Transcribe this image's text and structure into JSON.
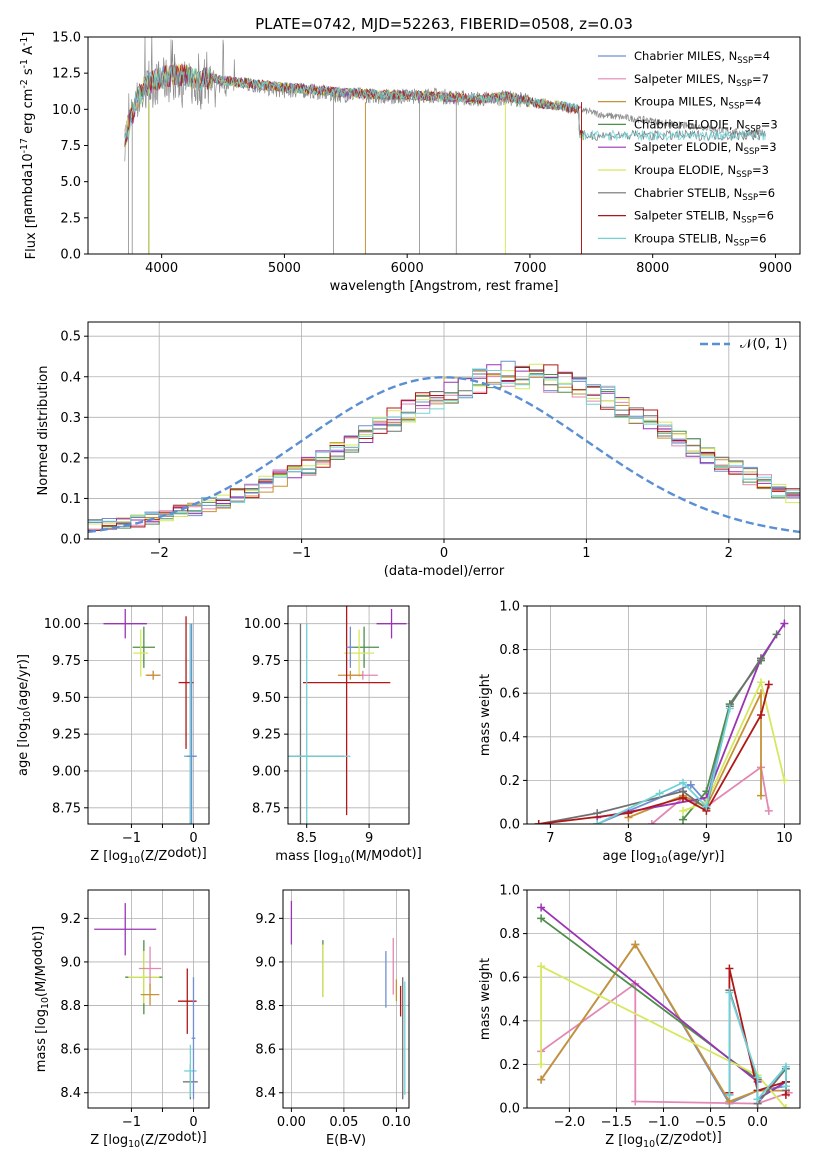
{
  "colors": {
    "Chabrier MILES": "#6f8fd1",
    "Salpeter MILES": "#e387b4",
    "Kroupa MILES": "#c79236",
    "Chabrier ELODIE": "#4e8e4a",
    "Salpeter ELODIE": "#9a34b5",
    "Kroupa ELODIE": "#d6e85f",
    "Chabrier STELIB": "#707070",
    "Salpeter STELIB": "#b01818",
    "Kroupa STELIB": "#70d2d6",
    "gauss": "#5b8fd4"
  },
  "chart_data": [
    {
      "id": "spectrum",
      "type": "line",
      "title": "PLATE=0742, MJD=52263, FIBERID=0508, z=0.03",
      "xlabel": "wavelength [Angstrom, rest frame]",
      "ylabel": "Flux [f$_\\lambda$10$^{-17}$ erg cm$^{-2}$ s$^{-1}$ A$^{-1}$]",
      "xlim": [
        3400,
        9200
      ],
      "ylim": [
        0,
        15
      ],
      "xticks": [
        4000,
        5000,
        6000,
        7000,
        8000,
        9000
      ],
      "yticks": [
        0.0,
        2.5,
        5.0,
        7.5,
        10.0,
        12.5,
        15.0
      ],
      "grid": false,
      "legend": "top-right",
      "legend_entries": [
        {
          "model": "Chabrier MILES",
          "n": "4"
        },
        {
          "model": "Salpeter MILES",
          "n": "7"
        },
        {
          "model": "Kroupa MILES",
          "n": "4"
        },
        {
          "model": "Chabrier ELODIE",
          "n": "3"
        },
        {
          "model": "Salpeter ELODIE",
          "n": "3"
        },
        {
          "model": "Kroupa ELODIE",
          "n": "3"
        },
        {
          "model": "Chabrier STELIB",
          "n": "6"
        },
        {
          "model": "Salpeter STELIB",
          "n": "6"
        },
        {
          "model": "Kroupa STELIB",
          "n": "6"
        }
      ],
      "series": [
        {
          "name": "data",
          "x": [
            3700,
            3800,
            3900,
            4000,
            4100,
            4200,
            4300,
            4400,
            4500,
            4600,
            4700,
            4800,
            4900,
            5000,
            5200,
            5400,
            5600,
            5800,
            6000,
            6200,
            6400,
            6600,
            6800,
            7000,
            7200,
            7400,
            7600,
            7800,
            8000,
            8200,
            8400,
            8600,
            8800,
            8900
          ],
          "y": [
            8.0,
            10.5,
            11.5,
            12.0,
            12.0,
            11.8,
            11.5,
            11.7,
            11.6,
            11.8,
            11.7,
            11.6,
            11.4,
            11.3,
            11.3,
            11.0,
            11.0,
            10.9,
            10.9,
            11.0,
            10.8,
            10.7,
            10.8,
            10.6,
            10.2,
            10.0,
            9.6,
            9.4,
            9.2,
            8.9,
            8.8,
            8.5,
            8.3,
            8.4
          ]
        },
        {
          "name": "model",
          "x": [
            3700,
            3800,
            3900,
            4000,
            4100,
            4200,
            4300,
            4400,
            4500,
            4600,
            4700,
            4800,
            4900,
            5000,
            5200,
            5400,
            5600,
            5800,
            6000,
            6200,
            6400,
            6600,
            6800,
            7000,
            7200,
            7400
          ],
          "y": [
            8.0,
            10.8,
            11.8,
            12.2,
            12.4,
            12.3,
            12.0,
            12.2,
            12.0,
            11.9,
            11.8,
            11.7,
            11.6,
            11.5,
            11.4,
            11.2,
            11.1,
            11.0,
            11.0,
            10.9,
            10.8,
            10.7,
            10.9,
            10.5,
            10.3,
            10.0
          ]
        }
      ]
    },
    {
      "id": "residuals",
      "type": "histogram",
      "xlabel": "(data-model)/error",
      "ylabel": "Normed distribution",
      "xlim": [
        -2.5,
        2.5
      ],
      "ylim": [
        0,
        0.535
      ],
      "xticks": [
        -2,
        -1,
        0,
        1,
        2
      ],
      "yticks": [
        0.0,
        0.1,
        0.2,
        0.3,
        0.4,
        0.5
      ],
      "grid": true,
      "legend": "top-right",
      "legend_label": "$\\mathcal{N}(0, 1)$",
      "bin_edges_start": -2.5,
      "bin_width": 0.1,
      "mean_bins": [
        0.035,
        0.035,
        0.04,
        0.045,
        0.05,
        0.06,
        0.068,
        0.075,
        0.085,
        0.095,
        0.108,
        0.12,
        0.135,
        0.15,
        0.165,
        0.18,
        0.2,
        0.215,
        0.235,
        0.255,
        0.275,
        0.295,
        0.315,
        0.335,
        0.352,
        0.365,
        0.378,
        0.39,
        0.398,
        0.405,
        0.405,
        0.402,
        0.395,
        0.385,
        0.372,
        0.36,
        0.345,
        0.328,
        0.31,
        0.29,
        0.27,
        0.25,
        0.23,
        0.21,
        0.19,
        0.172,
        0.155,
        0.138,
        0.122,
        0.108,
        0.095,
        0.084,
        0.073,
        0.064,
        0.055,
        0.048,
        0.042,
        0.036,
        0.031,
        0.026
      ],
      "gauss_x": [
        -2.5,
        -2.0,
        -1.5,
        -1.0,
        -0.5,
        0.0,
        0.5,
        1.0,
        1.5,
        2.0,
        2.5
      ],
      "gauss_y": [
        0.0175,
        0.054,
        0.1295,
        0.242,
        0.352,
        0.399,
        0.352,
        0.242,
        0.1295,
        0.054,
        0.0175
      ]
    },
    {
      "id": "age_vs_Z",
      "type": "errorbar",
      "xlabel": "Z [log$_{10}$($Z/Z_\\odot$)]",
      "ylabel": "age  [log$_{10}$($age/yr$)]",
      "xlim": [
        -1.7,
        0.25
      ],
      "ylim": [
        8.64,
        10.12
      ],
      "xticks": [
        -1,
        -0.5,
        0
      ],
      "xticklabels": [
        "−1",
        "",
        "0"
      ],
      "yticks": [
        8.75,
        9.0,
        9.25,
        9.5,
        9.75,
        10.0
      ],
      "grid": true,
      "points": [
        {
          "series": "Salpeter ELODIE",
          "x": -1.1,
          "y": 10.0,
          "xerr": 0.35,
          "yerr": 0.1
        },
        {
          "series": "Chabrier ELODIE",
          "x": -0.8,
          "y": 9.84,
          "xerr": 0.18,
          "yerr": 0.14
        },
        {
          "series": "Kroupa ELODIE",
          "x": -0.85,
          "y": 9.8,
          "xerr": 0.12,
          "yerr": 0.16
        },
        {
          "series": "Salpeter MILES",
          "x": -0.65,
          "y": 9.65,
          "xerr": 0.1,
          "yerr": 0.03
        },
        {
          "series": "Kroupa MILES",
          "x": -0.65,
          "y": 9.65,
          "xerr": 0.12,
          "yerr": 0.03
        },
        {
          "series": "Salpeter STELIB",
          "x": -0.12,
          "y": 9.6,
          "xerr": 0.12,
          "yerr": 0.45
        },
        {
          "series": "Chabrier STELIB",
          "x": -0.05,
          "y": 9.1,
          "xerr": 0.1,
          "yerr": 0.9
        },
        {
          "series": "Kroupa STELIB",
          "x": -0.05,
          "y": 9.1,
          "xerr": 0.1,
          "yerr": 0.9
        },
        {
          "series": "Chabrier MILES",
          "x": -0.03,
          "y": 9.1,
          "xerr": 0.08,
          "yerr": 0.9
        }
      ]
    },
    {
      "id": "age_vs_mass",
      "type": "errorbar",
      "xlabel": "mass [log$_{10}$($M/M_\\odot$)]",
      "ylabel": "",
      "xlim": [
        8.35,
        9.32
      ],
      "ylim": [
        8.64,
        10.12
      ],
      "xticks": [
        8.5,
        9.0
      ],
      "yticks": [
        8.75,
        9.0,
        9.25,
        9.5,
        9.75,
        10.0
      ],
      "grid": true,
      "points": [
        {
          "series": "Salpeter ELODIE",
          "x": 9.18,
          "y": 10.0,
          "xerr": 0.12,
          "yerr": 0.1
        },
        {
          "series": "Chabrier ELODIE",
          "x": 8.96,
          "y": 9.84,
          "xerr": 0.12,
          "yerr": 0.14
        },
        {
          "series": "Kroupa ELODIE",
          "x": 8.92,
          "y": 9.8,
          "xerr": 0.12,
          "yerr": 0.16
        },
        {
          "series": "Salpeter MILES",
          "x": 8.95,
          "y": 9.65,
          "xerr": 0.12,
          "yerr": 0.03
        },
        {
          "series": "Kroupa MILES",
          "x": 8.85,
          "y": 9.65,
          "xerr": 0.1,
          "yerr": 0.03
        },
        {
          "series": "Salpeter STELIB",
          "x": 8.82,
          "y": 9.6,
          "xerr": 0.35,
          "yerr": 0.9
        },
        {
          "series": "Chabrier STELIB",
          "x": 8.45,
          "y": 9.1,
          "xerr": 0.35,
          "yerr": 0.9
        },
        {
          "series": "Kroupa STELIB",
          "x": 8.5,
          "y": 9.1,
          "xerr": 0.35,
          "yerr": 0.9
        },
        {
          "series": "Chabrier MILES",
          "x": 8.85,
          "y": 9.84,
          "xerr": 0.03,
          "yerr": 0.14
        }
      ]
    },
    {
      "id": "weight_vs_age",
      "type": "line",
      "xlabel": "age  [log$_{10}$($age/yr$)]",
      "ylabel": "mass weight",
      "xlim": [
        6.7,
        10.2
      ],
      "ylim": [
        0,
        1
      ],
      "xticks": [
        7,
        8,
        9,
        10
      ],
      "yticks": [
        0.0,
        0.2,
        0.4,
        0.6,
        0.8,
        1.0
      ],
      "grid": true,
      "series": [
        {
          "name": "Chabrier MILES",
          "x": [
            7.6,
            8.8,
            9.0,
            9.3,
            9.7
          ],
          "y": [
            0.0,
            0.18,
            0.1,
            0.55,
            0.75
          ]
        },
        {
          "name": "Salpeter MILES",
          "x": [
            8.3,
            8.7,
            9.0,
            9.7,
            9.8
          ],
          "y": [
            0.0,
            0.12,
            0.08,
            0.26,
            0.06
          ]
        },
        {
          "name": "Kroupa MILES",
          "x": [
            8.0,
            8.7,
            9.0,
            9.7,
            9.7
          ],
          "y": [
            0.03,
            0.13,
            0.08,
            0.6,
            0.13
          ]
        },
        {
          "name": "Chabrier ELODIE",
          "x": [
            8.7,
            9.0,
            9.3,
            9.7,
            9.9
          ],
          "y": [
            0.02,
            0.15,
            0.55,
            0.75,
            0.87
          ]
        },
        {
          "name": "Salpeter ELODIE",
          "x": [
            7.6,
            9.0,
            9.7,
            10.0
          ],
          "y": [
            0.03,
            0.12,
            0.76,
            0.92
          ]
        },
        {
          "name": "Kroupa ELODIE",
          "x": [
            8.7,
            9.0,
            9.7,
            10.0
          ],
          "y": [
            0.06,
            0.1,
            0.65,
            0.2
          ]
        },
        {
          "name": "Chabrier STELIB",
          "x": [
            6.85,
            7.6,
            8.7,
            9.0,
            9.3,
            9.7
          ],
          "y": [
            0.0,
            0.05,
            0.15,
            0.07,
            0.54,
            0.76
          ]
        },
        {
          "name": "Salpeter STELIB",
          "x": [
            6.85,
            8.0,
            8.7,
            9.0,
            9.7,
            9.8
          ],
          "y": [
            0.0,
            0.05,
            0.12,
            0.06,
            0.5,
            0.64
          ]
        },
        {
          "name": "Kroupa STELIB",
          "x": [
            7.6,
            8.4,
            8.7,
            9.0,
            9.3
          ],
          "y": [
            0.0,
            0.14,
            0.19,
            0.08,
            0.53
          ]
        }
      ]
    },
    {
      "id": "mass_vs_Z",
      "type": "errorbar",
      "xlabel": "Z [log$_{10}$($Z/Z_\\odot$)]",
      "ylabel": "mass [log$_{10}$($M/M_\\odot$)]",
      "xlim": [
        -1.7,
        0.25
      ],
      "ylim": [
        8.33,
        9.33
      ],
      "xticks": [
        -1,
        -0.5,
        0
      ],
      "xticklabels": [
        "−1",
        "",
        "0"
      ],
      "yticks": [
        8.4,
        8.6,
        8.8,
        9.0,
        9.2
      ],
      "grid": true,
      "points": [
        {
          "series": "Salpeter ELODIE",
          "x": -1.1,
          "y": 9.15,
          "xerr": 0.5,
          "yerr": 0.12
        },
        {
          "series": "Chabrier ELODIE",
          "x": -0.8,
          "y": 8.93,
          "xerr": 0.3,
          "yerr": 0.17
        },
        {
          "series": "Kroupa ELODIE",
          "x": -0.8,
          "y": 8.93,
          "xerr": 0.25,
          "yerr": 0.12
        },
        {
          "series": "Salpeter MILES",
          "x": -0.7,
          "y": 8.97,
          "xerr": 0.18,
          "yerr": 0.1
        },
        {
          "series": "Kroupa MILES",
          "x": -0.7,
          "y": 8.85,
          "xerr": 0.15,
          "yerr": 0.05
        },
        {
          "series": "Salpeter STELIB",
          "x": -0.1,
          "y": 8.82,
          "xerr": 0.15,
          "yerr": 0.15
        },
        {
          "series": "Chabrier STELIB",
          "x": -0.05,
          "y": 8.45,
          "xerr": 0.12,
          "yerr": 0.08
        },
        {
          "series": "Kroupa STELIB",
          "x": -0.05,
          "y": 8.5,
          "xerr": 0.1,
          "yerr": 0.12
        },
        {
          "series": "Chabrier MILES",
          "x": 0.0,
          "y": 8.65,
          "xerr": 0.03,
          "yerr": 0.28
        }
      ]
    },
    {
      "id": "mass_vs_EBV",
      "type": "errorbar",
      "xlabel": "E(B-V)",
      "ylabel": "",
      "xlim": [
        -0.008,
        0.112
      ],
      "ylim": [
        8.33,
        9.33
      ],
      "xticks": [
        0.0,
        0.05,
        0.1
      ],
      "xticklabels": [
        "0.00",
        "0.05",
        "0.10"
      ],
      "yticks": [
        8.4,
        8.6,
        8.8,
        9.0,
        9.2
      ],
      "grid": true,
      "points": [
        {
          "series": "Salpeter ELODIE",
          "x": 0.0,
          "y": 9.18,
          "xerr": 0.0,
          "yerr": 0.1
        },
        {
          "series": "Chabrier ELODIE",
          "x": 0.03,
          "y": 8.97,
          "xerr": 0.0,
          "yerr": 0.13
        },
        {
          "series": "Kroupa ELODIE",
          "x": 0.03,
          "y": 8.96,
          "xerr": 0.0,
          "yerr": 0.12
        },
        {
          "series": "Chabrier MILES",
          "x": 0.09,
          "y": 8.92,
          "xerr": 0.0,
          "yerr": 0.13
        },
        {
          "series": "Salpeter MILES",
          "x": 0.097,
          "y": 8.98,
          "xerr": 0.0,
          "yerr": 0.13
        },
        {
          "series": "Kroupa MILES",
          "x": 0.1,
          "y": 8.87,
          "xerr": 0.0,
          "yerr": 0.05
        },
        {
          "series": "Chabrier STELIB",
          "x": 0.106,
          "y": 8.65,
          "xerr": 0.0,
          "yerr": 0.28
        },
        {
          "series": "Kroupa STELIB",
          "x": 0.108,
          "y": 8.65,
          "xerr": 0.0,
          "yerr": 0.26
        },
        {
          "series": "Salpeter STELIB",
          "x": 0.104,
          "y": 8.82,
          "xerr": 0.0,
          "yerr": 0.07
        }
      ]
    },
    {
      "id": "weight_vs_Z",
      "type": "line",
      "xlabel": "Z [log$_{10}$($Z/Z_\\odot$)]",
      "ylabel": "mass weight",
      "xlim": [
        -2.45,
        0.45
      ],
      "ylim": [
        0,
        1
      ],
      "xticks": [
        -2.0,
        -1.5,
        -1.0,
        -0.5,
        0.0
      ],
      "xticklabels": [
        "−2.0",
        "−1.5",
        "−1.0",
        "−0.5",
        "0.0"
      ],
      "yticks": [
        0.0,
        0.2,
        0.4,
        0.6,
        0.8,
        1.0
      ],
      "grid": true,
      "series": [
        {
          "name": "Chabrier MILES",
          "x": [
            -2.3,
            -1.3,
            -0.3,
            0.0,
            0.3
          ],
          "y": [
            0.13,
            0.75,
            0.02,
            0.08,
            0.1
          ]
        },
        {
          "name": "Salpeter MILES",
          "x": [
            -2.3,
            -1.3,
            -1.3,
            0.0,
            0.33
          ],
          "y": [
            0.26,
            0.57,
            0.03,
            0.02,
            0.07
          ]
        },
        {
          "name": "Kroupa MILES",
          "x": [
            -2.3,
            -1.3,
            -0.3,
            0.0,
            0.3
          ],
          "y": [
            0.13,
            0.75,
            0.03,
            0.08,
            0.08
          ]
        },
        {
          "name": "Chabrier ELODIE",
          "x": [
            -2.3,
            0.0,
            0.0,
            0.3
          ],
          "y": [
            0.87,
            0.13,
            0.04,
            0.12
          ]
        },
        {
          "name": "Salpeter ELODIE",
          "x": [
            -2.3,
            0.0,
            0.0,
            0.3
          ],
          "y": [
            0.92,
            0.12,
            0.04,
            0.12
          ]
        },
        {
          "name": "Kroupa ELODIE",
          "x": [
            -2.3,
            -2.3,
            0.0,
            0.3
          ],
          "y": [
            0.2,
            0.65,
            0.15,
            0.0
          ]
        },
        {
          "name": "Chabrier STELIB",
          "x": [
            -0.3,
            -0.3,
            0.0,
            0.0,
            0.3,
            0.3
          ],
          "y": [
            0.06,
            0.54,
            0.13,
            0.02,
            0.18,
            0.08
          ]
        },
        {
          "name": "Salpeter STELIB",
          "x": [
            -0.3,
            -0.3,
            0.0,
            0.3,
            0.3
          ],
          "y": [
            0.07,
            0.64,
            0.08,
            0.12,
            0.06
          ]
        },
        {
          "name": "Kroupa STELIB",
          "x": [
            -0.3,
            -0.3,
            0.0,
            0.0,
            0.3,
            0.3
          ],
          "y": [
            0.06,
            0.53,
            0.14,
            0.04,
            0.19,
            0.1
          ]
        }
      ]
    }
  ]
}
